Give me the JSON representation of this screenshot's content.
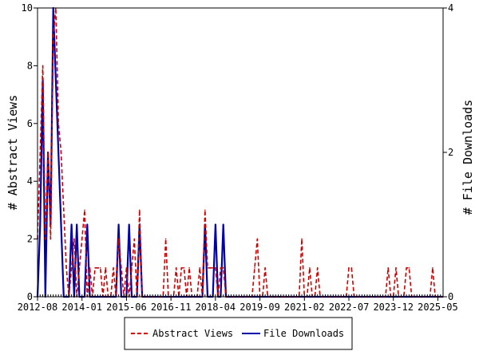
{
  "chart_data": {
    "type": "line",
    "title": "",
    "xlabel": "",
    "ylabel_left": "# Abstract Views",
    "ylabel_right": "# File Downloads",
    "ylim_left": [
      0,
      10
    ],
    "ylim_right": [
      0,
      4
    ],
    "yticks_left": [
      "0",
      "2",
      "4",
      "6",
      "8",
      "10"
    ],
    "yticks_right": [
      "0",
      "2",
      "4"
    ],
    "x_tick_labels": [
      "2012-08",
      "2014-01",
      "2015-06",
      "2016-11",
      "2018-04",
      "2019-09",
      "2021-02",
      "2022-07",
      "2023-12",
      "2025-05"
    ],
    "x_range": [
      "2012-08",
      "2025-07"
    ],
    "grid": false,
    "legend_position": "bottom",
    "series": [
      {
        "name": "Abstract Views",
        "axis": "left",
        "color": "#cc0000",
        "style": "dashed",
        "x": [
          "2012-08",
          "2012-09",
          "2012-10",
          "2012-11",
          "2012-12",
          "2013-01",
          "2013-02",
          "2013-03",
          "2013-04",
          "2013-05",
          "2013-06",
          "2013-07",
          "2013-08",
          "2013-09",
          "2013-10",
          "2013-11",
          "2013-12",
          "2014-01",
          "2014-02",
          "2014-03",
          "2014-04",
          "2014-05",
          "2014-06",
          "2014-07",
          "2014-08",
          "2014-09",
          "2014-10",
          "2014-11",
          "2014-12",
          "2015-01",
          "2015-02",
          "2015-03",
          "2015-04",
          "2015-05",
          "2015-06",
          "2015-07",
          "2015-08",
          "2015-09",
          "2015-10",
          "2015-11",
          "2015-12",
          "2016-01",
          "2016-02",
          "2016-03",
          "2016-04",
          "2016-05",
          "2016-06",
          "2016-07",
          "2016-08",
          "2016-09",
          "2016-10",
          "2016-11",
          "2016-12",
          "2017-01",
          "2017-02",
          "2017-03",
          "2017-04",
          "2017-05",
          "2017-06",
          "2017-07",
          "2017-08",
          "2017-09",
          "2017-10",
          "2017-11",
          "2017-12",
          "2018-01",
          "2018-02",
          "2018-03",
          "2018-04",
          "2018-05",
          "2018-06",
          "2018-07",
          "2018-08",
          "2018-09",
          "2018-10",
          "2018-11",
          "2018-12",
          "2019-01",
          "2019-02",
          "2019-03",
          "2019-04",
          "2019-05",
          "2019-06",
          "2019-07",
          "2019-08",
          "2019-09",
          "2019-10",
          "2019-11",
          "2019-12",
          "2020-01",
          "2020-02",
          "2020-03",
          "2020-04",
          "2020-05",
          "2020-06",
          "2020-07",
          "2020-08",
          "2020-09",
          "2020-10",
          "2020-11",
          "2020-12",
          "2021-01",
          "2021-02",
          "2021-03",
          "2021-04",
          "2021-05",
          "2021-06",
          "2021-07",
          "2021-08",
          "2021-09",
          "2021-10",
          "2021-11",
          "2021-12",
          "2022-01",
          "2022-02",
          "2022-03",
          "2022-04",
          "2022-05",
          "2022-06",
          "2022-07",
          "2022-08",
          "2022-09",
          "2022-10",
          "2022-11",
          "2022-12",
          "2023-01",
          "2023-02",
          "2023-03",
          "2023-04",
          "2023-05",
          "2023-06",
          "2023-07",
          "2023-08",
          "2023-09",
          "2023-10",
          "2023-11",
          "2023-12",
          "2024-01",
          "2024-02",
          "2024-03",
          "2024-04",
          "2024-05",
          "2024-06",
          "2024-07",
          "2024-08",
          "2024-09",
          "2024-10",
          "2024-11",
          "2024-12",
          "2025-01",
          "2025-02",
          "2025-03",
          "2025-04",
          "2025-05",
          "2025-06",
          "2025-07"
        ],
        "values": [
          2,
          5,
          8,
          2,
          5,
          2,
          9,
          10,
          6,
          5,
          3,
          1,
          0,
          1,
          2,
          0,
          1,
          2,
          3,
          0,
          1,
          0,
          1,
          1,
          1,
          0,
          1,
          0,
          0,
          1,
          0,
          2,
          1,
          0,
          1,
          0,
          1,
          2,
          0,
          3,
          0,
          0,
          0,
          0,
          0,
          0,
          0,
          0,
          0,
          2,
          0,
          0,
          0,
          1,
          0,
          1,
          1,
          0,
          1,
          0,
          0,
          0,
          1,
          0,
          3,
          1,
          1,
          1,
          1,
          0,
          1,
          1,
          0,
          0,
          0,
          0,
          0,
          0,
          0,
          0,
          0,
          0,
          0,
          1,
          2,
          0,
          0,
          1,
          0,
          0,
          0,
          0,
          0,
          0,
          0,
          0,
          0,
          0,
          0,
          0,
          0,
          2,
          0,
          0,
          1,
          0,
          0,
          1,
          0,
          0,
          0,
          0,
          0,
          0,
          0,
          0,
          0,
          0,
          0,
          1,
          1,
          0,
          0,
          0,
          0,
          0,
          0,
          0,
          0,
          0,
          0,
          0,
          0,
          0,
          1,
          0,
          0,
          1,
          0,
          0,
          0,
          1,
          1,
          0,
          0,
          0,
          0,
          0,
          0,
          0,
          0,
          1,
          0,
          0,
          0,
          0
        ]
      },
      {
        "name": "File Downloads",
        "axis": "right",
        "color": "#0000aa",
        "style": "solid",
        "x": [
          "2012-08",
          "2012-09",
          "2012-10",
          "2012-11",
          "2012-12",
          "2013-01",
          "2013-02",
          "2013-03",
          "2013-04",
          "2013-05",
          "2013-06",
          "2013-07",
          "2013-08",
          "2013-09",
          "2013-10",
          "2013-11",
          "2013-12",
          "2014-01",
          "2014-02",
          "2014-03",
          "2014-04",
          "2014-05",
          "2014-06",
          "2014-07",
          "2014-08",
          "2014-09",
          "2014-10",
          "2014-11",
          "2014-12",
          "2015-01",
          "2015-02",
          "2015-03",
          "2015-04",
          "2015-05",
          "2015-06",
          "2015-07",
          "2015-08",
          "2015-09",
          "2015-10",
          "2015-11",
          "2015-12",
          "2016-01",
          "2016-02",
          "2016-03",
          "2016-04",
          "2016-05",
          "2016-06",
          "2016-07",
          "2016-08",
          "2016-09",
          "2016-10",
          "2016-11",
          "2016-12",
          "2017-01",
          "2017-02",
          "2017-03",
          "2017-04",
          "2017-05",
          "2017-06",
          "2017-07",
          "2017-08",
          "2017-09",
          "2017-10",
          "2017-11",
          "2017-12",
          "2018-01",
          "2018-02",
          "2018-03",
          "2018-04",
          "2018-05",
          "2018-06",
          "2018-07",
          "2018-08",
          "2018-09",
          "2018-10",
          "2018-11",
          "2018-12",
          "2019-01",
          "2019-02",
          "2019-03",
          "2019-04",
          "2019-05",
          "2019-06",
          "2019-07",
          "2019-08",
          "2019-09",
          "2019-10",
          "2019-11",
          "2019-12",
          "2020-01",
          "2020-02",
          "2020-03",
          "2020-04",
          "2020-05",
          "2020-06",
          "2020-07",
          "2020-08",
          "2020-09",
          "2020-10",
          "2020-11",
          "2020-12",
          "2021-01",
          "2021-02",
          "2021-03",
          "2021-04",
          "2021-05",
          "2021-06",
          "2021-07",
          "2021-08",
          "2021-09",
          "2021-10",
          "2021-11",
          "2021-12",
          "2022-01",
          "2022-02",
          "2022-03",
          "2022-04",
          "2022-05",
          "2022-06",
          "2022-07",
          "2022-08",
          "2022-09",
          "2022-10",
          "2022-11",
          "2022-12",
          "2023-01",
          "2023-02",
          "2023-03",
          "2023-04",
          "2023-05",
          "2023-06",
          "2023-07",
          "2023-08",
          "2023-09",
          "2023-10",
          "2023-11",
          "2023-12",
          "2024-01",
          "2024-02",
          "2024-03",
          "2024-04",
          "2024-05",
          "2024-06",
          "2024-07",
          "2024-08",
          "2024-09",
          "2024-10",
          "2024-11",
          "2024-12",
          "2025-01",
          "2025-02",
          "2025-03",
          "2025-04",
          "2025-05",
          "2025-06",
          "2025-07"
        ],
        "values": [
          0,
          1,
          3,
          0,
          2,
          1,
          4,
          3,
          2,
          1,
          0,
          0,
          0,
          1,
          0,
          1,
          0,
          0,
          0,
          1,
          0,
          0,
          0,
          0,
          0,
          0,
          0,
          0,
          0,
          0,
          0,
          1,
          0,
          0,
          0,
          1,
          0,
          0,
          0,
          1,
          0,
          0,
          0,
          0,
          0,
          0,
          0,
          0,
          0,
          0,
          0,
          0,
          0,
          0,
          0,
          0,
          0,
          0,
          0,
          0,
          0,
          0,
          0,
          0,
          1,
          0,
          0,
          0,
          1,
          0,
          0,
          1,
          0,
          0,
          0,
          0,
          0,
          0,
          0,
          0,
          0,
          0,
          0,
          0,
          0,
          0,
          0,
          0,
          0,
          0,
          0,
          0,
          0,
          0,
          0,
          0,
          0,
          0,
          0,
          0,
          0,
          0,
          0,
          0,
          0,
          0,
          0,
          0,
          0,
          0,
          0,
          0,
          0,
          0,
          0,
          0,
          0,
          0,
          0,
          0,
          0,
          0,
          0,
          0,
          0,
          0,
          0,
          0,
          0,
          0,
          0,
          0,
          0,
          0,
          0,
          0,
          0,
          0,
          0,
          0,
          0,
          0,
          0,
          0,
          0,
          0,
          0,
          0,
          0,
          0,
          0,
          0,
          0,
          0,
          0,
          0
        ]
      }
    ]
  }
}
